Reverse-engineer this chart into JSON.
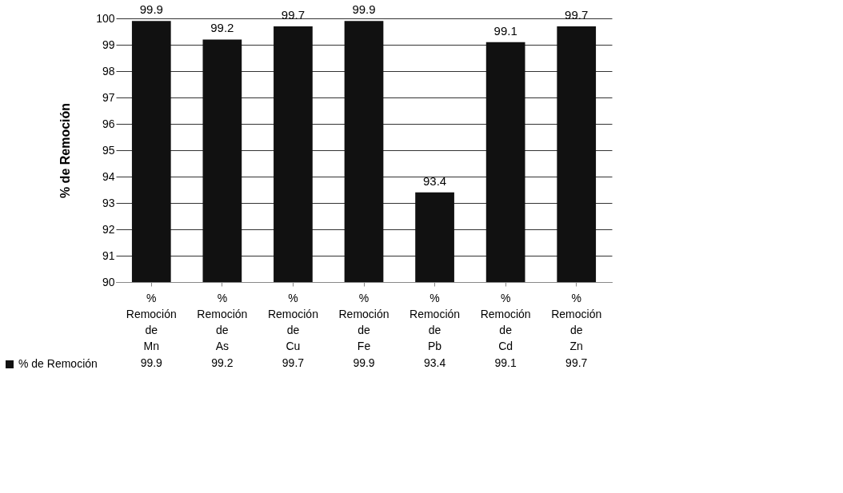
{
  "chart_data": {
    "type": "bar",
    "ylabel": "% de Remoción",
    "categories": [
      "% Remoción de Mn",
      "% Remoción de As",
      "% Remoción de Cu",
      "% Remoción de Fe",
      "% Remoción de Pb",
      "% Remoción de Cd",
      "% Remoción de Zn"
    ],
    "series": [
      {
        "name": "% de Remoción",
        "color": "#111111",
        "values": [
          99.9,
          99.2,
          99.7,
          99.9,
          93.4,
          99.1,
          99.7
        ]
      }
    ],
    "ylim": [
      90,
      100
    ],
    "yticks": [
      90,
      91,
      92,
      93,
      94,
      95,
      96,
      97,
      98,
      99,
      100
    ],
    "grid": "y",
    "data_labels": true,
    "legend": "bottom left",
    "annotations": [
      {
        "text": "99.9",
        "x": "% Remoción de Mn",
        "y": 99.9
      },
      {
        "text": "99.2",
        "x": "% Remoción de As",
        "y": 99.2
      },
      {
        "text": "99.7",
        "x": "% Remoción de Cu",
        "y": 99.7
      },
      {
        "text": "99.9",
        "x": "% Remoción de Fe",
        "y": 99.9
      },
      {
        "text": "93.4",
        "x": "% Remoción de Pb",
        "y": 93.4
      },
      {
        "text": "99.1",
        "x": "% Remoción de Cd",
        "y": 99.1
      },
      {
        "text": "99.7",
        "x": "% Remoción de Zn",
        "y": 99.7
      }
    ]
  }
}
